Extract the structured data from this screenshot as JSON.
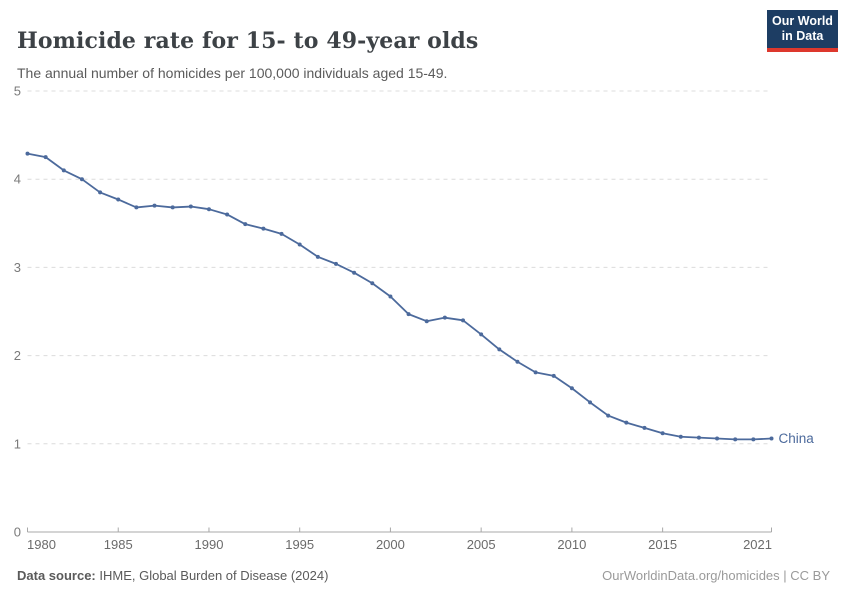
{
  "header": {
    "title": "Homicide rate for 15- to 49-year olds",
    "subtitle": "The annual number of homicides per 100,000 individuals aged 15-49.",
    "logo": {
      "line1": "Our World",
      "line2": "in Data"
    }
  },
  "chart_data": {
    "type": "line",
    "title": "Homicide rate for 15- to 49-year olds",
    "subtitle": "The annual number of homicides per 100,000 individuals aged 15-49.",
    "xlabel": "",
    "ylabel": "",
    "xlim": [
      1980,
      2021
    ],
    "ylim": [
      0,
      5
    ],
    "x_ticks": [
      1980,
      1985,
      1990,
      1995,
      2000,
      2005,
      2010,
      2015,
      2021
    ],
    "y_ticks": [
      0,
      1,
      2,
      3,
      4,
      5
    ],
    "grid": "horizontal-dashed",
    "legend_position": "end-of-line-label",
    "series": [
      {
        "name": "China",
        "color": "#4c6a9c",
        "x": [
          1980,
          1981,
          1982,
          1983,
          1984,
          1985,
          1986,
          1987,
          1988,
          1989,
          1990,
          1991,
          1992,
          1993,
          1994,
          1995,
          1996,
          1997,
          1998,
          1999,
          2000,
          2001,
          2002,
          2003,
          2004,
          2005,
          2006,
          2007,
          2008,
          2009,
          2010,
          2011,
          2012,
          2013,
          2014,
          2015,
          2016,
          2017,
          2018,
          2019,
          2020,
          2021
        ],
        "values": [
          4.29,
          4.25,
          4.1,
          4.0,
          3.85,
          3.77,
          3.68,
          3.7,
          3.68,
          3.69,
          3.66,
          3.6,
          3.49,
          3.44,
          3.38,
          3.26,
          3.12,
          3.04,
          2.94,
          2.82,
          2.67,
          2.47,
          2.39,
          2.43,
          2.4,
          2.24,
          2.07,
          1.93,
          1.81,
          1.77,
          1.63,
          1.47,
          1.32,
          1.24,
          1.18,
          1.12,
          1.08,
          1.07,
          1.06,
          1.05,
          1.05,
          1.06
        ]
      }
    ]
  },
  "footer": {
    "datasource_label": "Data source:",
    "datasource_value": " IHME, Global Burden of Disease (2024)",
    "link": "OurWorldinData.org/homicides | CC BY"
  },
  "colors": {
    "series": "#4c6a9c",
    "gridline": "#dcdcdc",
    "axis": "#a8a8a8",
    "x_tick_label": "#6b6b6b",
    "y_tick_label": "#7a7a7a",
    "logo_bg": "#1d3d63",
    "logo_accent": "#dd382d"
  }
}
